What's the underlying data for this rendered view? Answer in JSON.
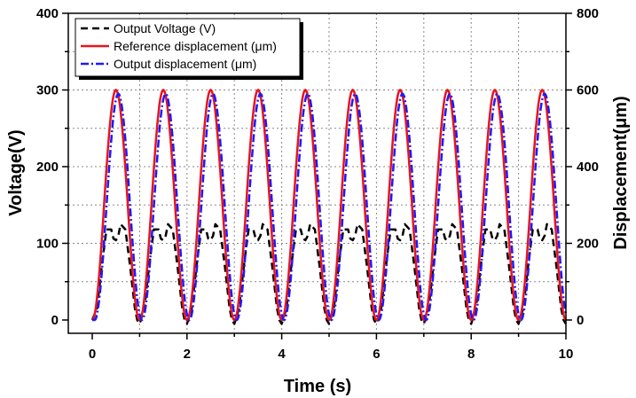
{
  "chart_data": {
    "type": "line",
    "title": "",
    "xlabel": "Time (s)",
    "ylabel": "Voltage(V)",
    "y2label": "Displacement(μm)",
    "xlim": [
      0,
      10
    ],
    "ylim": [
      0,
      400
    ],
    "y2lim": [
      0,
      800
    ],
    "grid": true,
    "legend_position": "top-left",
    "x_ticks": [
      "0",
      "2",
      "4",
      "6",
      "8",
      "10"
    ],
    "y_ticks": [
      "0",
      "100",
      "200",
      "300",
      "400"
    ],
    "y2_ticks": [
      "0",
      "200",
      "400",
      "600",
      "800"
    ],
    "period_s": 1,
    "series": [
      {
        "name": "Output Voltage (V)",
        "axis": "left",
        "color": "#000000",
        "style": "dash",
        "x": [
          0,
          0.1,
          0.2,
          0.3,
          0.4,
          0.45,
          0.5,
          0.55,
          0.6,
          0.7,
          0.8,
          0.9,
          0.95,
          1.0
        ],
        "values": [
          0,
          15,
          70,
          118,
          118,
          106,
          104,
          110,
          125,
          118,
          70,
          15,
          0,
          -5
        ]
      },
      {
        "name": "Reference displacement (μm)",
        "axis": "right",
        "color": "#e8141c",
        "style": "solid",
        "amplitude": 600,
        "phase_s": 0,
        "x": [
          0,
          0.1,
          0.2,
          0.3,
          0.4,
          0.5,
          0.6,
          0.7,
          0.8,
          0.9,
          1.0
        ],
        "values": [
          0,
          57,
          207,
          393,
          543,
          600,
          543,
          393,
          207,
          57,
          0
        ]
      },
      {
        "name": "Output displacement (μm)",
        "axis": "right",
        "color": "#1a1aff",
        "style": "dashdot",
        "amplitude": 590,
        "phase_s": 0.05,
        "x": [
          0,
          0.05,
          0.15,
          0.25,
          0.35,
          0.45,
          0.55,
          0.65,
          0.75,
          0.85,
          0.95,
          1.0
        ],
        "values": [
          0,
          0,
          57,
          205,
          387,
          534,
          590,
          534,
          387,
          205,
          57,
          0
        ]
      }
    ]
  },
  "colors": {
    "axis": "#000000",
    "grid": "#888888",
    "background": "#ffffff"
  }
}
